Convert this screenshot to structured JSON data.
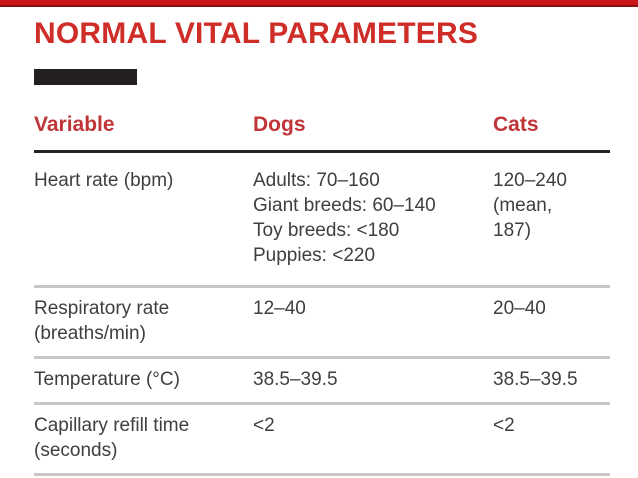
{
  "page": {
    "title": "NORMAL VITAL PARAMETERS"
  },
  "table": {
    "col_variable": "Variable",
    "col_dogs": "Dogs",
    "col_cats": "Cats",
    "rows": [
      {
        "variable": "Heart rate (bpm)",
        "dogs_lines": [
          "Adults: 70–160",
          "Giant breeds: 60–140",
          "Toy breeds: <180",
          "Puppies: <220"
        ],
        "cats_lines": [
          "120–240",
          "(mean,",
          "187)"
        ]
      },
      {
        "variable": "Respiratory rate (breaths/min)",
        "dogs": "12–40",
        "cats": "20–40"
      },
      {
        "variable": "Temperature (°C)",
        "dogs": "38.5–39.5",
        "cats": "38.5–39.5"
      },
      {
        "variable": "Capillary refill time (seconds)",
        "dogs": "<2",
        "cats": "<2"
      }
    ]
  },
  "colors": {
    "top_bar_red": "#cb1517",
    "top_bar_dark_red": "#8f0f10",
    "title_red": "#cf2d28",
    "column_header_red": "#bf3538",
    "body_text": "#3f3e40",
    "header_rule_black": "#272324",
    "row_rule_gray": "#c8c7c7",
    "highlight_mark_black": "#242021"
  }
}
